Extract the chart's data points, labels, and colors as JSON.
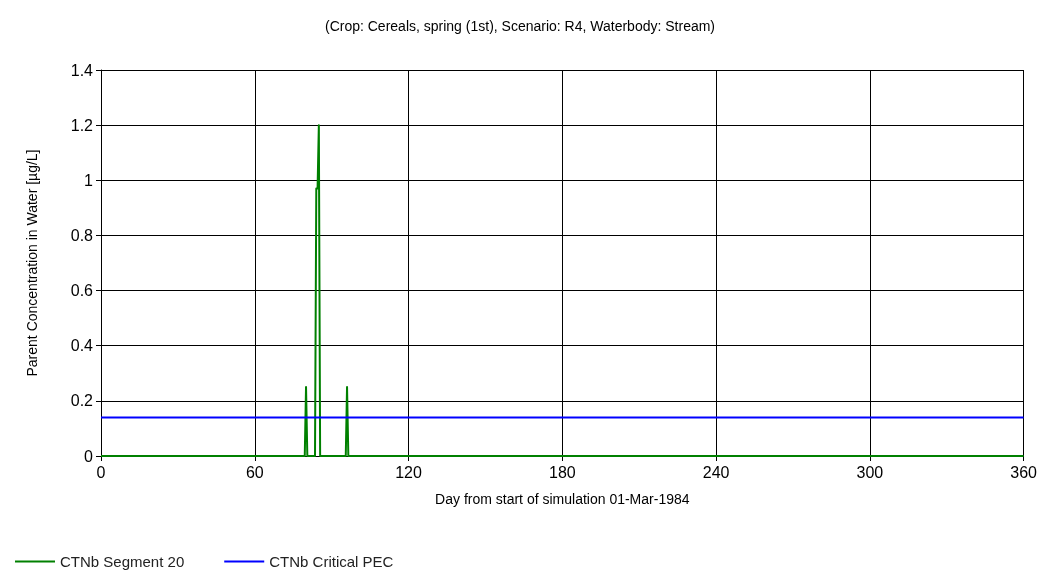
{
  "chart_data": {
    "type": "line",
    "title": "(Crop: Cereals, spring (1st), Scenario: R4, Waterbody: Stream)",
    "xlabel": "Day from start of simulation 01-Mar-1984",
    "ylabel": "Parent Concentration in Water [µg/L]",
    "series": [
      {
        "name": "CTNb Segment 20",
        "color": "#008000",
        "x": [
          0,
          79.5,
          80,
          80.5,
          83.5,
          84,
          84.5,
          85,
          85.5,
          95.5,
          96,
          96.5,
          360
        ],
        "values": [
          0,
          0,
          0.25,
          0,
          0,
          0.97,
          0.97,
          1.2,
          0,
          0,
          0.25,
          0,
          0
        ]
      },
      {
        "name": "CTNb Critical PEC",
        "color": "#0000ff",
        "x": [
          0,
          360
        ],
        "values": [
          0.14,
          0.14
        ]
      }
    ],
    "xlim": [
      0,
      360
    ],
    "xticks": [
      0,
      60,
      120,
      180,
      240,
      300,
      360
    ],
    "ylim": [
      0,
      1.4
    ],
    "yticks": [
      0,
      0.2,
      0.4,
      0.6,
      0.8,
      1,
      1.2,
      1.4
    ],
    "grid": true,
    "legend": "bottom left",
    "marker": "none",
    "line_style": "solid"
  }
}
